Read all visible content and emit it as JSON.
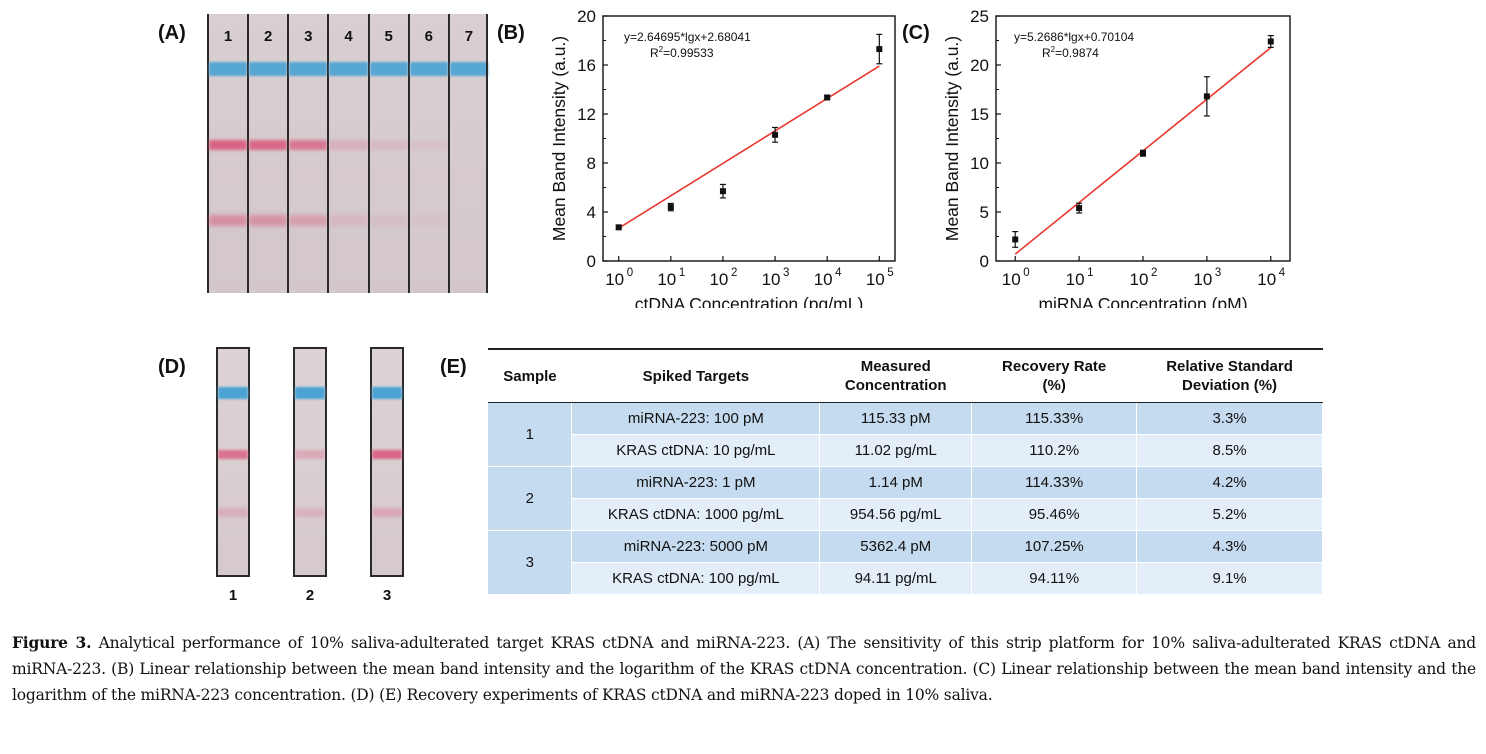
{
  "panel_labels": {
    "a": "(A)",
    "b": "(B)",
    "c": "(C)",
    "d": "(D)",
    "e": "(E)"
  },
  "strips_a": {
    "lanes": [
      "1",
      "2",
      "3",
      "4",
      "5",
      "6",
      "7"
    ],
    "test_line_intensity": [
      1.0,
      0.95,
      0.8,
      0.25,
      0.15,
      0.08,
      0.0
    ],
    "band2_intensity": [
      0.85,
      0.8,
      0.6,
      0.25,
      0.15,
      0.08,
      0.0
    ],
    "control_color": "#4aa3d4",
    "test_color": "#d9416b"
  },
  "strips_d": {
    "labels": [
      "1",
      "2",
      "3"
    ],
    "test_line_intensity": [
      0.8,
      0.3,
      0.9
    ],
    "band2_intensity": [
      0.35,
      0.3,
      0.45
    ]
  },
  "chart_data": [
    {
      "type": "scatter",
      "panel": "B",
      "xlabel": "ctDNA Concentration (pg/mL)",
      "ylabel": "Mean Band Intensity (a.u.)",
      "xscale": "log",
      "x_tick_labels": [
        "10",
        "10",
        "10",
        "10",
        "10",
        "10"
      ],
      "x_tick_exponents": [
        "0",
        "1",
        "2",
        "3",
        "4",
        "5"
      ],
      "y_tick_labels": [
        "0",
        "4",
        "8",
        "12",
        "16",
        "20"
      ],
      "xlim": [
        0.5,
        200000
      ],
      "ylim": [
        0,
        20
      ],
      "x": [
        1,
        10,
        100,
        1000,
        10000,
        100000
      ],
      "y": [
        2.75,
        4.4,
        5.7,
        10.3,
        13.35,
        17.3
      ],
      "yerr": [
        0.15,
        0.3,
        0.55,
        0.6,
        0.15,
        1.2
      ],
      "fit": {
        "slope": 2.64695,
        "intercept": 2.68041,
        "color": "#e8372f"
      },
      "equation": "y=2.64695*lgx+2.68041",
      "r2_label": "R",
      "r2_sup": "2",
      "r2_value": "=0.99533",
      "grid": false
    },
    {
      "type": "scatter",
      "panel": "C",
      "xlabel": "miRNA Concentration (pM)",
      "ylabel": "Mean Band Intensity (a.u.)",
      "xscale": "log",
      "x_tick_labels": [
        "10",
        "10",
        "10",
        "10",
        "10"
      ],
      "x_tick_exponents": [
        "0",
        "1",
        "2",
        "3",
        "4"
      ],
      "y_tick_labels": [
        "0",
        "5",
        "10",
        "15",
        "20",
        "25"
      ],
      "xlim": [
        0.5,
        20000
      ],
      "ylim": [
        0,
        25
      ],
      "x": [
        1,
        10,
        100,
        1000,
        10000
      ],
      "y": [
        2.2,
        5.4,
        11.0,
        16.8,
        22.4
      ],
      "yerr": [
        0.8,
        0.5,
        0.3,
        2.0,
        0.6
      ],
      "fit": {
        "slope": 5.2686,
        "intercept": 0.70104,
        "color": "#e8372f"
      },
      "equation": "y=5.2686*lgx+0.70104",
      "r2_label": "R",
      "r2_sup": "2",
      "r2_value": "=0.9874",
      "grid": false
    }
  ],
  "table_e": {
    "headers": [
      "Sample",
      "Spiked Targets",
      "Measured Concentration",
      "Recovery Rate (%)",
      "Relative Standard Deviation (%)"
    ],
    "header_lines": [
      [
        "Sample"
      ],
      [
        "Spiked Targets"
      ],
      [
        "Measured",
        "Concentration"
      ],
      [
        "Recovery Rate",
        "(%)"
      ],
      [
        "Relative Standard",
        "Deviation (%)"
      ]
    ],
    "rows": [
      {
        "sample": "1",
        "target": "miRNA-223: 100 pM",
        "measured": "115.33 pM",
        "recovery": "115.33%",
        "rsd": "3.3%"
      },
      {
        "sample": "",
        "target": "KRAS ctDNA: 10 pg/mL",
        "measured": "11.02 pg/mL",
        "recovery": "110.2%",
        "rsd": "8.5%"
      },
      {
        "sample": "2",
        "target": "miRNA-223:  1 pM",
        "measured": "1.14 pM",
        "recovery": "114.33%",
        "rsd": "4.2%"
      },
      {
        "sample": "",
        "target": "KRAS ctDNA: 1000 pg/mL",
        "measured": "954.56 pg/mL",
        "recovery": "95.46%",
        "rsd": "5.2%"
      },
      {
        "sample": "3",
        "target": "miRNA-223:  5000 pM",
        "measured": "5362.4 pM",
        "recovery": "107.25%",
        "rsd": "4.3%"
      },
      {
        "sample": "",
        "target": "KRAS ctDNA: 100 pg/mL",
        "measured": "94.11 pg/mL",
        "recovery": "94.11%",
        "rsd": "9.1%"
      }
    ]
  },
  "caption": {
    "label": "Figure 3.",
    "text": " Analytical performance of 10% saliva-adulterated target KRAS ctDNA and miRNA-223. (A) The sensitivity of this strip platform for 10% saliva-adulterated KRAS ctDNA and miRNA-223. (B) Linear relationship between the mean band intensity and the logarithm of the KRAS ctDNA concentration. (C) Linear relationship between the mean band intensity and the logarithm of the miRNA-223 concentration. (D) (E) Recovery experiments of KRAS ctDNA and miRNA-223 doped in 10% saliva."
  }
}
